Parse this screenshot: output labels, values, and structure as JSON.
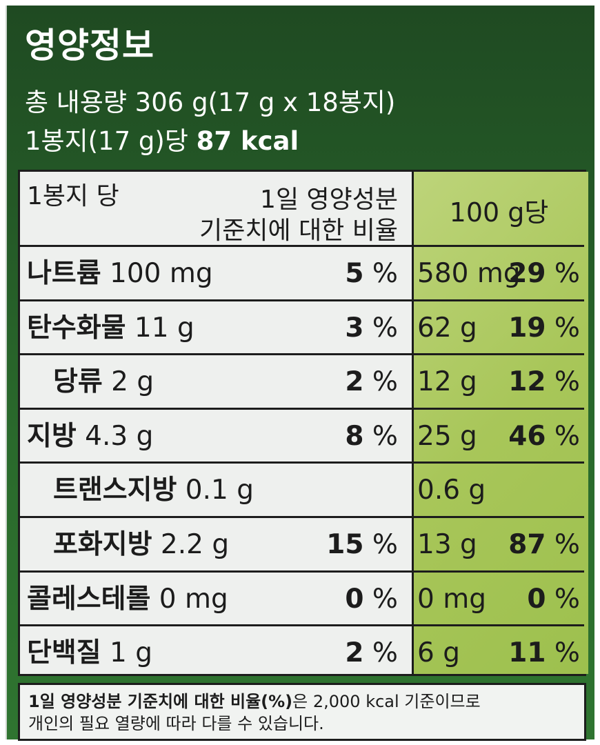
{
  "title": "영양정보",
  "total_content": "총 내용량 306 g(17 g x 18봉지)",
  "per_serving_prefix": "1봉지(17 g)당",
  "calories": "87 kcal",
  "table": {
    "header_left": "1봉지 당",
    "header_mid_line1": "1일 영양성분",
    "header_mid_line2": "기준치에 대한 비율",
    "header_right": "100 g당",
    "rows": [
      {
        "name": "나트륨",
        "amount": "100 mg",
        "dv": "5",
        "unit": "%",
        "per100_amount": "580 mg",
        "per100_dv": "29",
        "indent": false
      },
      {
        "name": "탄수화물",
        "amount": "11 g",
        "dv": "3",
        "unit": "%",
        "per100_amount": "62 g",
        "per100_dv": "19",
        "indent": false
      },
      {
        "name": "당류",
        "amount": "2 g",
        "dv": "2",
        "unit": "%",
        "per100_amount": "12 g",
        "per100_dv": "12",
        "indent": true
      },
      {
        "name": "지방",
        "amount": "4.3 g",
        "dv": "8",
        "unit": "%",
        "per100_amount": "25 g",
        "per100_dv": "46",
        "indent": false
      },
      {
        "name": "트랜스지방",
        "amount": "0.1 g",
        "dv": "",
        "unit": "",
        "per100_amount": "0.6 g",
        "per100_dv": "",
        "indent": true
      },
      {
        "name": "포화지방",
        "amount": "2.2 g",
        "dv": "15",
        "unit": "%",
        "per100_amount": "13 g",
        "per100_dv": "87",
        "indent": true
      },
      {
        "name": "콜레스테롤",
        "amount": "0 mg",
        "dv": "0",
        "unit": "%",
        "per100_amount": "0 mg",
        "per100_dv": "0",
        "indent": false
      },
      {
        "name": "단백질",
        "amount": "1 g",
        "dv": "2",
        "unit": "%",
        "per100_amount": "6 g",
        "per100_dv": "11",
        "indent": false
      }
    ]
  },
  "footer_bold": "1일 영양성분 기준치에 대한 비율(%)",
  "footer_rest": "은 2,000 kcal 기준이므로",
  "footer_line2": "개인의 필요 열량에 따라 다를 수 있습니다.",
  "colors": {
    "panel_green": "#2a6a2c",
    "per100_column": "#a8c659"
  }
}
